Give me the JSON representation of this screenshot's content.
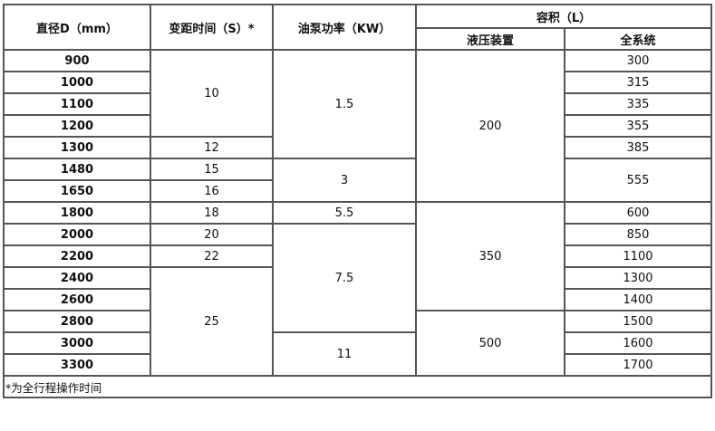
{
  "header": {
    "diameter": "直径D（mm）",
    "pitch_time": "变距时间（S）*",
    "pump_power": "油泵功率（KW）",
    "volume": "容积（L）",
    "hydraulic": "液压装置",
    "full_system": "全系统"
  },
  "columns": {
    "diameter": [
      [
        "900",
        1
      ],
      [
        "1000",
        1
      ],
      [
        "1100",
        1
      ],
      [
        "1200",
        1
      ],
      [
        "1300",
        1
      ],
      [
        "1480",
        1
      ],
      [
        "1650",
        1
      ],
      [
        "1800",
        1
      ],
      [
        "2000",
        1
      ],
      [
        "2200",
        1
      ],
      [
        "2400",
        1
      ],
      [
        "2600",
        1
      ],
      [
        "2800",
        1
      ],
      [
        "3000",
        1
      ],
      [
        "3300",
        1
      ]
    ],
    "pitch_time": [
      [
        "10",
        4
      ],
      [
        "12",
        1
      ],
      [
        "15",
        1
      ],
      [
        "16",
        1
      ],
      [
        "18",
        1
      ],
      [
        "20",
        1
      ],
      [
        "22",
        1
      ],
      [
        "25",
        5
      ]
    ],
    "pump_power": [
      [
        "1.5",
        5
      ],
      [
        "3",
        2
      ],
      [
        "5.5",
        1
      ],
      [
        "7.5",
        5
      ],
      [
        "11",
        2
      ]
    ],
    "hydraulic": [
      [
        "200",
        7
      ],
      [
        "350",
        5
      ],
      [
        "500",
        3
      ]
    ],
    "full_system": [
      [
        "300",
        1
      ],
      [
        "315",
        1
      ],
      [
        "335",
        1
      ],
      [
        "355",
        1
      ],
      [
        "385",
        1
      ],
      [
        "555",
        2
      ],
      [
        "600",
        1
      ],
      [
        "850",
        1
      ],
      [
        "1100",
        1
      ],
      [
        "1300",
        1
      ],
      [
        "1400",
        1
      ],
      [
        "1500",
        1
      ],
      [
        "1600",
        1
      ],
      [
        "1700",
        1
      ]
    ]
  },
  "footnote": "*为全行程操作时间"
}
